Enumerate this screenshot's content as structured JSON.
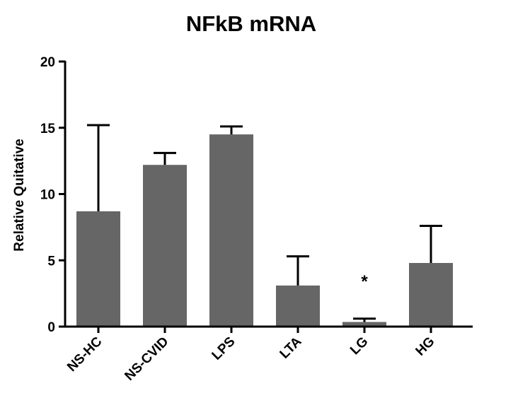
{
  "chart_data": {
    "type": "bar",
    "title": "NFkB mRNA",
    "xlabel": "",
    "ylabel": "Relative Quitative",
    "ylim": [
      0,
      20
    ],
    "yticks": [
      0,
      5,
      10,
      15,
      20
    ],
    "categories": [
      "NS-HC",
      "NS-CVID",
      "LPS",
      "LTA",
      "LG",
      "HG"
    ],
    "values": [
      8.7,
      12.2,
      14.5,
      3.1,
      0.35,
      4.8
    ],
    "error_upper": [
      15.2,
      13.1,
      15.1,
      5.3,
      0.6,
      7.6
    ],
    "bar_color": "#666666",
    "annotations": [
      {
        "category": "LG",
        "text": "*"
      }
    ],
    "grid": false,
    "legend": "none"
  }
}
